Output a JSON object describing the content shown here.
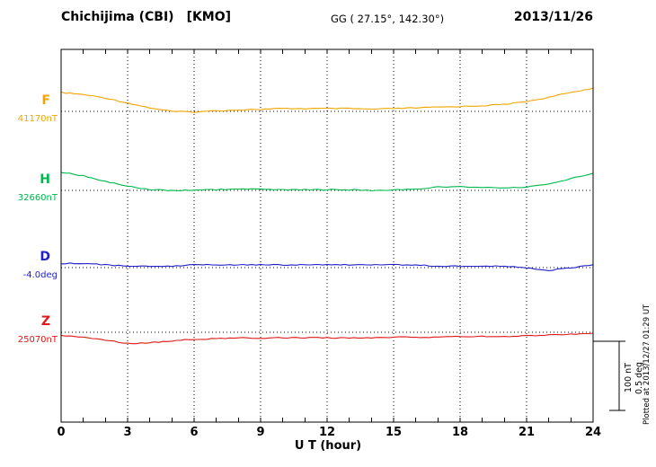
{
  "header": {
    "station": "Chichijima (CBI)",
    "code": "[KMO]",
    "coords": "GG ( 27.15°, 142.30°)",
    "date": "2013/11/26"
  },
  "footer": {
    "xlabel": "U T (hour)"
  },
  "side": {
    "plotted_note": "Plotted at 2013/12/27 01:29 UT",
    "scale_nt_label": "100 nT",
    "scale_deg_label": "0.5 deg"
  },
  "chart_data": {
    "type": "line",
    "title": "Chichijima (CBI) [KMO] magnetogram 2013/11/26",
    "xlabel": "U T (hour)",
    "xlim": [
      0,
      24
    ],
    "x_ticks": [
      0,
      3,
      6,
      9,
      12,
      15,
      18,
      21,
      24
    ],
    "x_hours": [
      0,
      1,
      2,
      3,
      4,
      5,
      6,
      7,
      8,
      9,
      10,
      11,
      12,
      13,
      14,
      15,
      16,
      17,
      18,
      19,
      20,
      21,
      22,
      23,
      24
    ],
    "grid": "dotted vertical lines every 3 hours; dotted horizontal baseline per component",
    "legend_position": "left margin, one label per trace",
    "scale": {
      "nT_per_division": 100,
      "deg_per_division": 0.5
    },
    "series": [
      {
        "name": "F",
        "unit": "nT",
        "color": "#f0a500",
        "baseline": 41170,
        "baseline_label": "41170nT",
        "values": [
          41197,
          41194,
          41189,
          41182,
          41175,
          41170,
          41169,
          41171,
          41172,
          41173,
          41174,
          41174,
          41174,
          41174,
          41173,
          41174,
          41175,
          41176,
          41177,
          41178,
          41180,
          41184,
          41190,
          41197,
          41203
        ]
      },
      {
        "name": "H",
        "unit": "nT",
        "color": "#00b84c",
        "baseline": 32660,
        "baseline_label": "32660nT",
        "values": [
          32686,
          32681,
          32673,
          32666,
          32661,
          32660,
          32660,
          32661,
          32662,
          32662,
          32661,
          32661,
          32661,
          32661,
          32660,
          32661,
          32662,
          32665,
          32665,
          32664,
          32664,
          32665,
          32669,
          32677,
          32684
        ]
      },
      {
        "name": "D",
        "unit": "deg",
        "color": "#2020c8",
        "baseline": -4.0,
        "baseline_label": "-4.0deg",
        "values": [
          -3.97,
          -3.97,
          -3.98,
          -3.99,
          -3.99,
          -3.99,
          -3.98,
          -3.98,
          -3.98,
          -3.98,
          -3.98,
          -3.98,
          -3.98,
          -3.98,
          -3.98,
          -3.98,
          -3.98,
          -3.99,
          -3.99,
          -3.99,
          -3.99,
          -4.0,
          -4.02,
          -4.0,
          -3.98
        ]
      },
      {
        "name": "Z",
        "unit": "nT",
        "color": "#e01818",
        "baseline": 25070,
        "baseline_label": "25070nT",
        "values": [
          25065,
          25063,
          25059,
          25054,
          25055,
          25058,
          25060,
          25061,
          25062,
          25062,
          25062,
          25062,
          25062,
          25062,
          25062,
          25063,
          25063,
          25063,
          25064,
          25064,
          25064,
          25065,
          25066,
          25067,
          25068
        ]
      }
    ]
  }
}
